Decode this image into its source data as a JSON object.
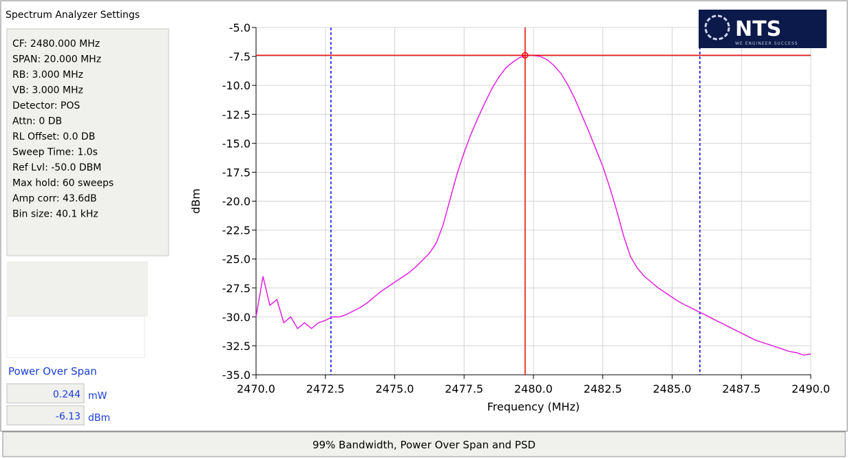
{
  "panel_title": "Spectrum Analyzer Settings",
  "settings": [
    "CF: 2480.000 MHz",
    "SPAN: 20.000 MHz",
    "RB: 3.000 MHz",
    "VB: 3.000 MHz",
    "Detector: POS",
    "Attn: 0 DB",
    "RL Offset: 0.0 DB",
    "Sweep Time: 1.0s",
    "Ref Lvl: -50.0 DBM",
    "Max hold: 60 sweeps",
    "Amp corr: 43.6dB",
    "Bin size: 40.1 kHz"
  ],
  "power_over_span": {
    "label": "Power Over Span",
    "readings": [
      {
        "value": 0.244,
        "unit": "mW"
      },
      {
        "value": -6.13,
        "unit": "dBm"
      }
    ]
  },
  "footer": "99% Bandwidth, Power Over Span and PSD",
  "logo": {
    "text": "NTS",
    "tagline": "WE ENGINEER SUCCESS"
  },
  "chart_data": {
    "type": "line",
    "xlabel": "Frequency (MHz)",
    "ylabel": "dBm",
    "xlim": [
      2470,
      2490
    ],
    "ylim": [
      -35,
      -5
    ],
    "grid": true,
    "xticks": [
      {
        "value": 2470,
        "label": "2470.0"
      },
      {
        "value": 2472.5,
        "label": "2472.5"
      },
      {
        "value": 2475,
        "label": "2475.0"
      },
      {
        "value": 2477.5,
        "label": "2477.5"
      },
      {
        "value": 2480,
        "label": "2480.0"
      },
      {
        "value": 2482.5,
        "label": "2482.5"
      },
      {
        "value": 2485,
        "label": "2485.0"
      },
      {
        "value": 2487.5,
        "label": "2487.5"
      },
      {
        "value": 2490,
        "label": "2490.0"
      }
    ],
    "yticks": [
      {
        "value": -5,
        "label": "-5.0"
      },
      {
        "value": -7.5,
        "label": "-7.5"
      },
      {
        "value": -10,
        "label": "-10.0"
      },
      {
        "value": -12.5,
        "label": "-12.5"
      },
      {
        "value": -15,
        "label": "-15.0"
      },
      {
        "value": -17.5,
        "label": "-17.5"
      },
      {
        "value": -20,
        "label": "-20.0"
      },
      {
        "value": -22.5,
        "label": "-22.5"
      },
      {
        "value": -25,
        "label": "-25.0"
      },
      {
        "value": -27.5,
        "label": "-27.5"
      },
      {
        "value": -30,
        "label": "-30.0"
      },
      {
        "value": -32.5,
        "label": "-32.5"
      },
      {
        "value": -35,
        "label": "-35.0"
      }
    ],
    "x": [
      2470,
      2470.25,
      2470.5,
      2470.75,
      2471,
      2471.25,
      2471.5,
      2471.75,
      2472,
      2472.25,
      2472.5,
      2472.75,
      2473,
      2473.25,
      2473.5,
      2473.75,
      2474,
      2474.25,
      2474.5,
      2474.75,
      2475,
      2475.25,
      2475.5,
      2475.75,
      2476,
      2476.25,
      2476.5,
      2476.75,
      2477,
      2477.25,
      2477.5,
      2477.75,
      2478,
      2478.25,
      2478.5,
      2478.75,
      2479,
      2479.25,
      2479.5,
      2479.75,
      2480,
      2480.25,
      2480.5,
      2480.75,
      2481,
      2481.25,
      2481.5,
      2481.75,
      2482,
      2482.25,
      2482.5,
      2482.75,
      2483,
      2483.25,
      2483.5,
      2483.75,
      2484,
      2484.25,
      2484.5,
      2484.75,
      2485,
      2485.25,
      2485.5,
      2485.75,
      2486,
      2486.25,
      2486.5,
      2486.75,
      2487,
      2487.25,
      2487.5,
      2487.75,
      2488,
      2488.25,
      2488.5,
      2488.75,
      2489,
      2489.25,
      2489.5,
      2489.75,
      2490
    ],
    "series": [
      {
        "color": "#e020e0",
        "values": [
          -30.0,
          -26.5,
          -29.0,
          -28.5,
          -30.5,
          -30.0,
          -31.0,
          -30.5,
          -31.0,
          -30.5,
          -30.3,
          -30.0,
          -30.0,
          -29.8,
          -29.5,
          -29.2,
          -28.8,
          -28.3,
          -27.8,
          -27.4,
          -27.0,
          -26.6,
          -26.2,
          -25.7,
          -25.1,
          -24.5,
          -23.6,
          -22.0,
          -19.8,
          -17.6,
          -15.8,
          -14.2,
          -12.8,
          -11.5,
          -10.3,
          -9.3,
          -8.5,
          -8.0,
          -7.6,
          -7.4,
          -7.4,
          -7.5,
          -7.8,
          -8.3,
          -9.0,
          -10.0,
          -11.2,
          -12.6,
          -14.0,
          -15.5,
          -17.0,
          -18.8,
          -20.8,
          -23.0,
          -24.8,
          -25.8,
          -26.5,
          -27.0,
          -27.5,
          -27.9,
          -28.3,
          -28.7,
          -29.0,
          -29.3,
          -29.6,
          -29.9,
          -30.2,
          -30.5,
          -30.8,
          -31.1,
          -31.4,
          -31.7,
          -32.0,
          -32.2,
          -32.4,
          -32.6,
          -32.8,
          -33.0,
          -33.1,
          -33.3,
          -33.2
        ]
      }
    ],
    "vertical_markers": {
      "color": "#0000ee",
      "x": [
        2472.7,
        2486.0
      ]
    },
    "cursor": {
      "color": "#ee0000",
      "x": 2479.7,
      "y": -7.4
    }
  }
}
